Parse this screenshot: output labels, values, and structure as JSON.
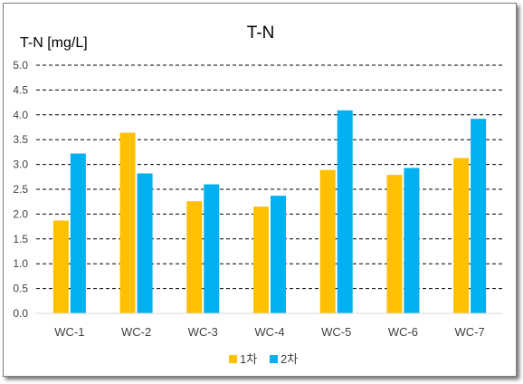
{
  "chart_data": {
    "type": "bar",
    "title": "T-N",
    "ylabel": "T-N [mg/L]",
    "xlabel": "",
    "categories": [
      "WC-1",
      "WC-2",
      "WC-3",
      "WC-4",
      "WC-5",
      "WC-6",
      "WC-7"
    ],
    "series": [
      {
        "name": "1차",
        "color": "#FFC000",
        "values": [
          1.87,
          3.64,
          2.26,
          2.15,
          2.89,
          2.79,
          3.13
        ]
      },
      {
        "name": "2차",
        "color": "#00B0F0",
        "values": [
          3.22,
          2.82,
          2.6,
          2.37,
          4.09,
          2.93,
          3.92
        ]
      }
    ],
    "ylim": [
      0,
      5
    ],
    "yticks": [
      "0.0",
      "0.5",
      "1.0",
      "1.5",
      "2.0",
      "2.5",
      "3.0",
      "3.5",
      "4.0",
      "4.5",
      "5.0"
    ],
    "grid": "dashed horizontal",
    "legend_position": "bottom"
  }
}
